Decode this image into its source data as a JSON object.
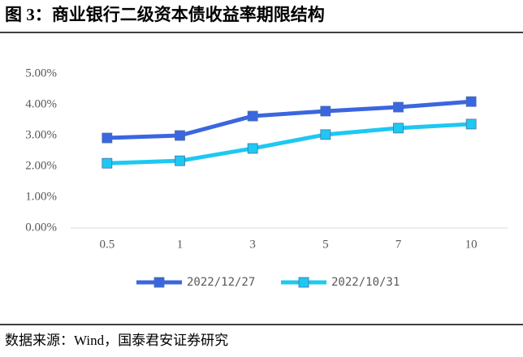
{
  "chart_data": {
    "type": "line",
    "title": "图 3：商业银行二级资本债收益率期限结构",
    "source": "数据来源：Wind，国泰君安证券研究",
    "categories": [
      "0.5",
      "1",
      "3",
      "5",
      "7",
      "10"
    ],
    "series": [
      {
        "name": "2022/12/27",
        "color": "#3a66e0",
        "values": [
          2.92,
          3.0,
          3.63,
          3.79,
          3.92,
          4.1
        ]
      },
      {
        "name": "2022/10/31",
        "color": "#1ec8f2",
        "values": [
          2.1,
          2.18,
          2.58,
          3.03,
          3.24,
          3.37
        ]
      }
    ],
    "ylim": [
      0,
      5
    ],
    "yticks": [
      {
        "value": 0,
        "label": "0.00%"
      },
      {
        "value": 1,
        "label": "1.00%"
      },
      {
        "value": 2,
        "label": "2.00%"
      },
      {
        "value": 3,
        "label": "3.00%"
      },
      {
        "value": 4,
        "label": "4.00%"
      },
      {
        "value": 5,
        "label": "5.00%"
      }
    ],
    "grid": false,
    "legend": "bottom"
  }
}
